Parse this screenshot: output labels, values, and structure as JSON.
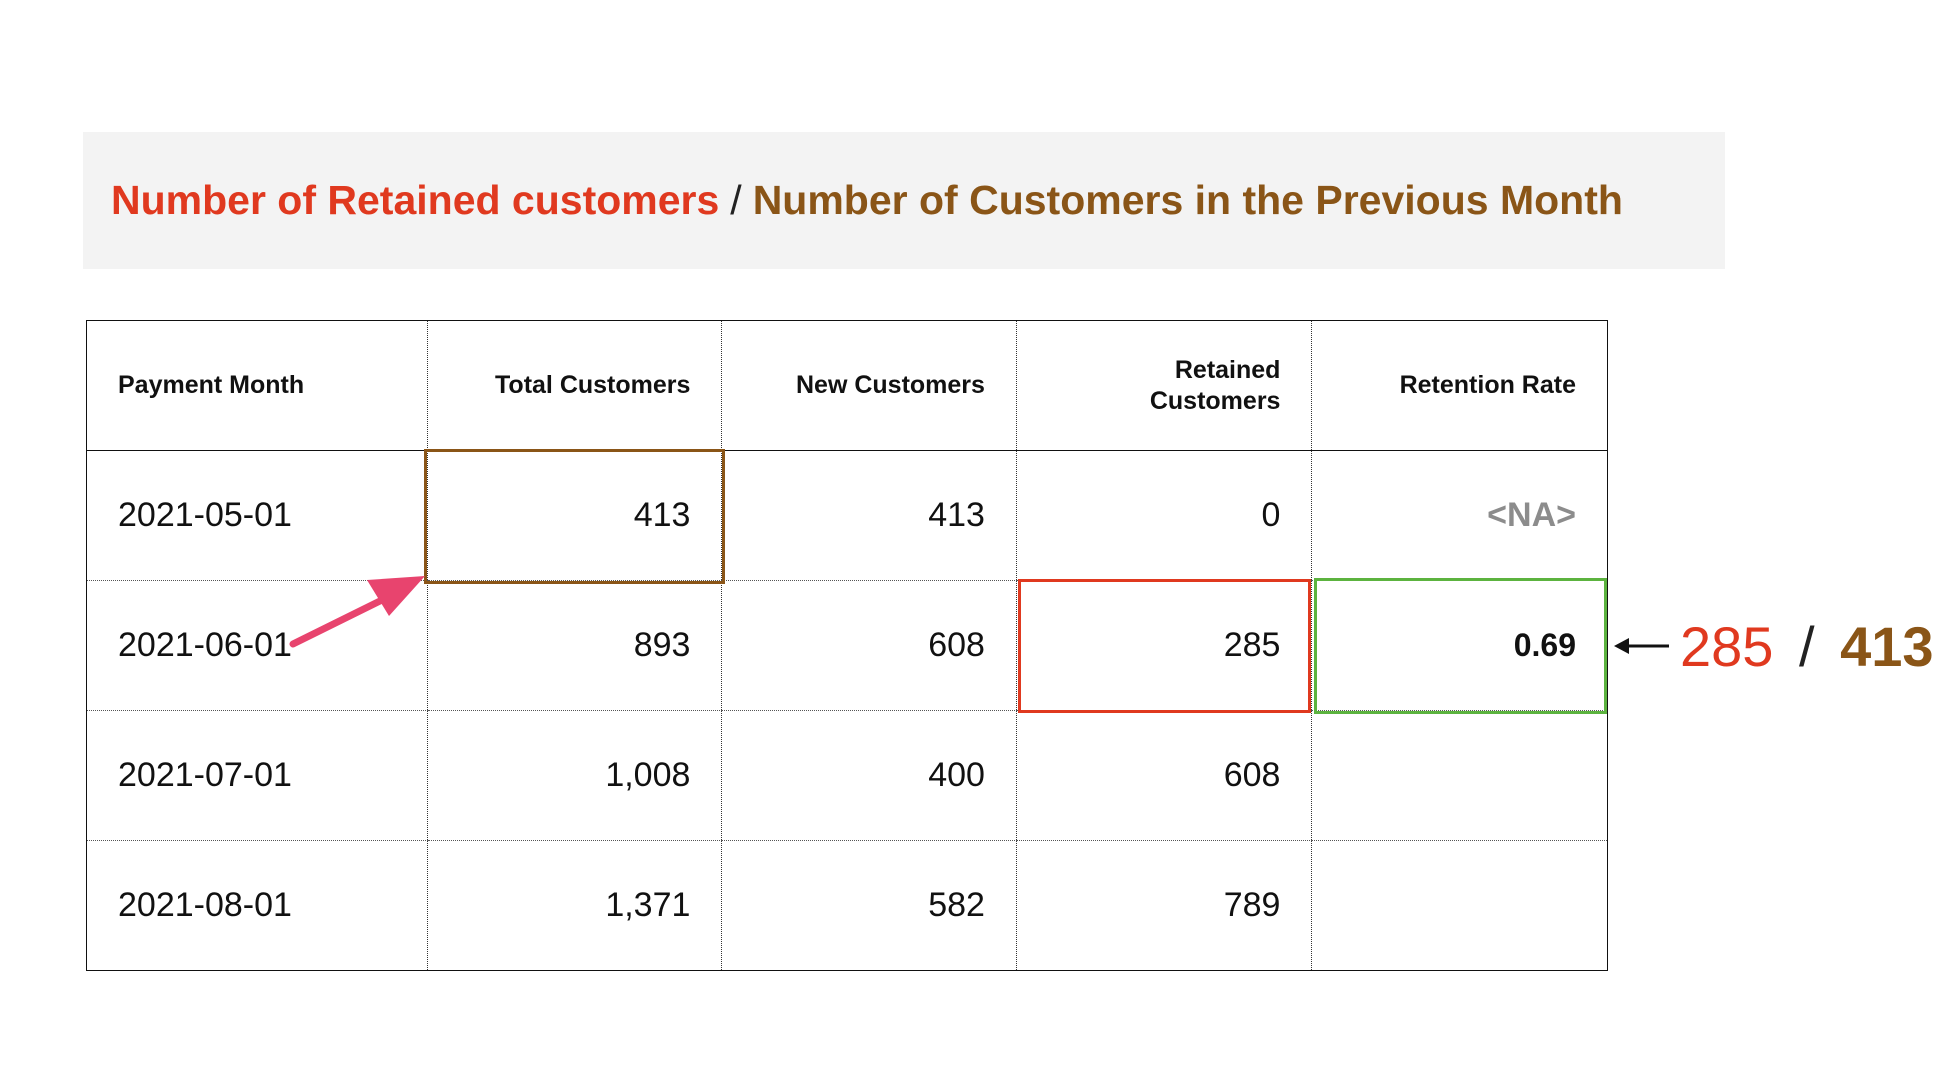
{
  "formula": {
    "numerator": "Number of Retained customers",
    "divider": "/",
    "denominator": "Number of Customers in the Previous Month"
  },
  "table": {
    "headers": [
      "Payment Month",
      "Total Customers",
      "New Customers",
      "Retained Customers",
      "Retention Rate"
    ],
    "rows": [
      [
        "2021-05-01",
        "413",
        "413",
        "0",
        "<NA>"
      ],
      [
        "2021-06-01",
        "893",
        "608",
        "285",
        "0.69"
      ],
      [
        "2021-07-01",
        "1,008",
        "400",
        "608",
        ""
      ],
      [
        "2021-08-01",
        "1,371",
        "582",
        "789",
        ""
      ]
    ]
  },
  "side_calc": {
    "numerator": "285",
    "divider": "/",
    "denominator": "413"
  },
  "colors": {
    "numerator": "#e0391f",
    "denominator": "#8a5517",
    "highlight_result": "#5cb33f",
    "pointer_arrow": "#e8446e",
    "formula_background": "#f3f3f3"
  }
}
